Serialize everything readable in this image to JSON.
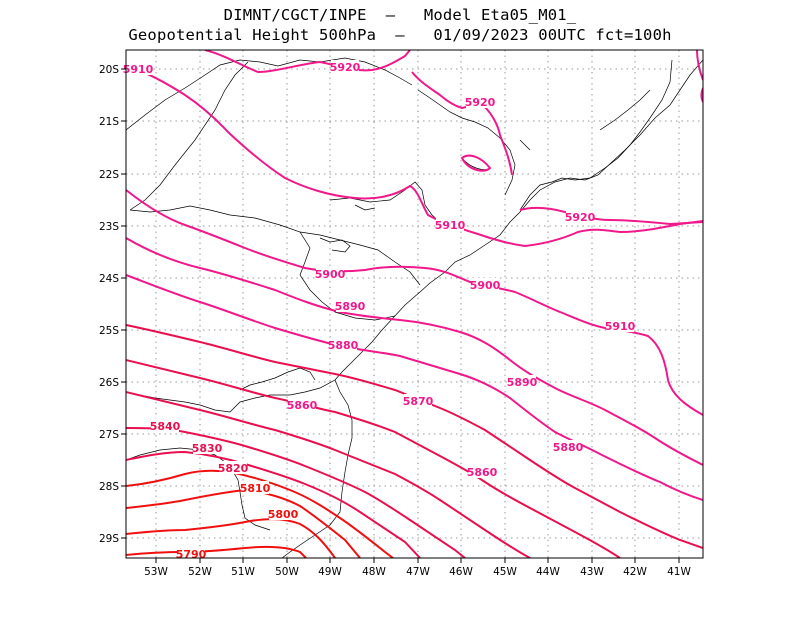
{
  "title_line1": "DIMNT/CGCT/INPE  –   Model Eta05_M01_",
  "title_line2": "Geopotential Height 500hPa  –   01/09/2023 00UTC fct=100h",
  "lat_ticks": [
    "20S",
    "21S",
    "22S",
    "23S",
    "24S",
    "25S",
    "26S",
    "27S",
    "28S",
    "29S"
  ],
  "lon_ticks": [
    "53W",
    "52W",
    "51W",
    "50W",
    "49W",
    "48W",
    "47W",
    "46W",
    "45W",
    "44W",
    "43W",
    "42W",
    "41W"
  ],
  "colors": {
    "high": "#f0188a",
    "mid": "#e8104f",
    "low": "#f01010",
    "coast": "#000000",
    "grid": "#9a9a9a"
  },
  "contour_labels": [
    {
      "text": "5910",
      "color": "high"
    },
    {
      "text": "5920",
      "color": "high"
    },
    {
      "text": "5920",
      "color": "high"
    },
    {
      "text": "5910",
      "color": "high"
    },
    {
      "text": "5920",
      "color": "high"
    },
    {
      "text": "5900",
      "color": "high"
    },
    {
      "text": "5900",
      "color": "high"
    },
    {
      "text": "5890",
      "color": "high"
    },
    {
      "text": "5910",
      "color": "high"
    },
    {
      "text": "5880",
      "color": "high"
    },
    {
      "text": "5890",
      "color": "high"
    },
    {
      "text": "5860",
      "color": "high"
    },
    {
      "text": "5870",
      "color": "high"
    },
    {
      "text": "5840",
      "color": "mid"
    },
    {
      "text": "5880",
      "color": "high"
    },
    {
      "text": "5830",
      "color": "mid"
    },
    {
      "text": "5860",
      "color": "high"
    },
    {
      "text": "5820",
      "color": "mid"
    },
    {
      "text": "5810",
      "color": "low"
    },
    {
      "text": "5800",
      "color": "low"
    },
    {
      "text": "5790",
      "color": "low"
    }
  ]
}
